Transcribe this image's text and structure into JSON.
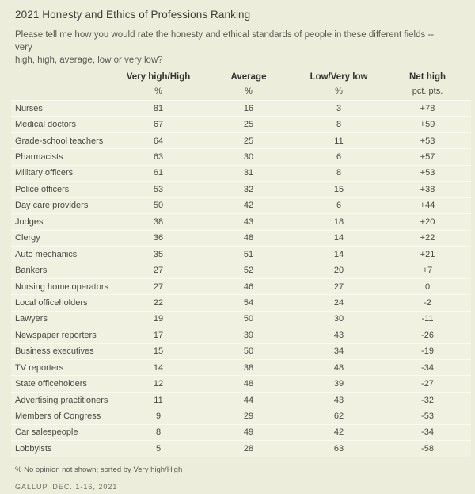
{
  "chart_data": {
    "type": "table",
    "title": "2021 Honesty and Ethics of Professions Ranking",
    "subtitle": "Please tell me how you would rate the honesty and ethical standards of people in these different fields -- very\nhigh, high, average, low or very low?",
    "columns": [
      "",
      "Very high/High",
      "Average",
      "Low/Very low",
      "Net high"
    ],
    "units": [
      "",
      "%",
      "%",
      "%",
      "pct. pts."
    ],
    "rows": [
      [
        "Nurses",
        "81",
        "16",
        "3",
        "+78"
      ],
      [
        "Medical doctors",
        "67",
        "25",
        "8",
        "+59"
      ],
      [
        "Grade-school teachers",
        "64",
        "25",
        "11",
        "+53"
      ],
      [
        "Pharmacists",
        "63",
        "30",
        "6",
        "+57"
      ],
      [
        "Military officers",
        "61",
        "31",
        "8",
        "+53"
      ],
      [
        "Police officers",
        "53",
        "32",
        "15",
        "+38"
      ],
      [
        "Day care providers",
        "50",
        "42",
        "6",
        "+44"
      ],
      [
        "Judges",
        "38",
        "43",
        "18",
        "+20"
      ],
      [
        "Clergy",
        "36",
        "48",
        "14",
        "+22"
      ],
      [
        "Auto mechanics",
        "35",
        "51",
        "14",
        "+21"
      ],
      [
        "Bankers",
        "27",
        "52",
        "20",
        "+7"
      ],
      [
        "Nursing home operators",
        "27",
        "46",
        "27",
        "0"
      ],
      [
        "Local officeholders",
        "22",
        "54",
        "24",
        "-2"
      ],
      [
        "Lawyers",
        "19",
        "50",
        "30",
        "-11"
      ],
      [
        "Newspaper reporters",
        "17",
        "39",
        "43",
        "-26"
      ],
      [
        "Business executives",
        "15",
        "50",
        "34",
        "-19"
      ],
      [
        "TV reporters",
        "14",
        "38",
        "48",
        "-34"
      ],
      [
        "State officeholders",
        "12",
        "48",
        "39",
        "-27"
      ],
      [
        "Advertising practitioners",
        "11",
        "44",
        "43",
        "-32"
      ],
      [
        "Members of Congress",
        "9",
        "29",
        "62",
        "-53"
      ],
      [
        "Car salespeople",
        "8",
        "49",
        "42",
        "-34"
      ],
      [
        "Lobbyists",
        "5",
        "28",
        "63",
        "-58"
      ]
    ],
    "footnote": "% No opinion not shown; sorted by Very high/High",
    "source": "GALLUP, DEC. 1-16, 2021",
    "layout": {
      "legend": "none",
      "grid": "horizontal row separators only"
    },
    "colors": {
      "background": "#ECEDDB",
      "row_band": "#F0F1E1",
      "separator": "#FAFBF0",
      "text": "#494A41",
      "header_text": "#34352E"
    }
  }
}
